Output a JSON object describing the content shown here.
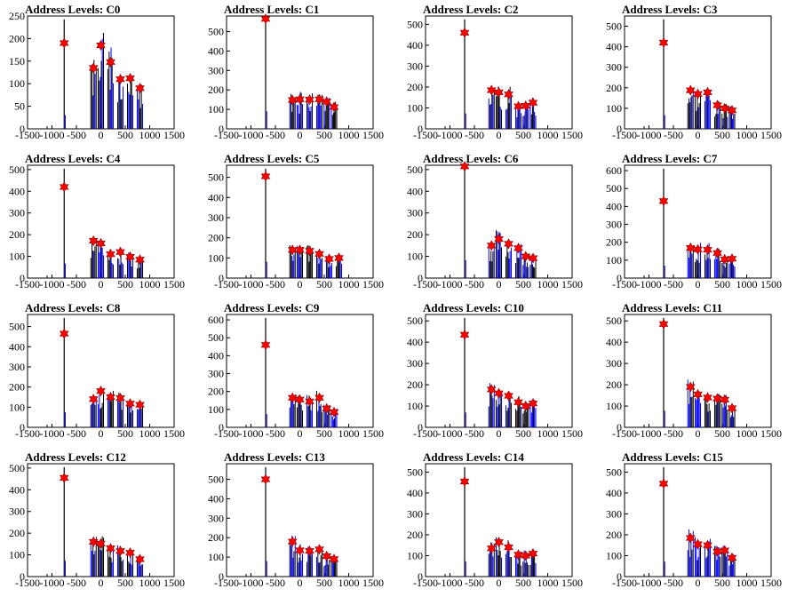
{
  "chart_data": [
    {
      "type": "bar",
      "title": "Address Levels: C0",
      "xlim": [
        -1500,
        1500
      ],
      "ylim": [
        0,
        250
      ],
      "yticks": [
        0,
        50,
        100,
        150,
        200,
        250
      ],
      "xticks": [
        -1500,
        -1000,
        -500,
        0,
        500,
        1000,
        1500
      ],
      "peaks_x": [
        -750,
        -150,
        0,
        200,
        400,
        600,
        800
      ],
      "peaks_y": [
        190,
        135,
        185,
        148,
        110,
        112,
        90
      ]
    },
    {
      "type": "bar",
      "title": "Address Levels: C1",
      "xlim": [
        -1500,
        1500
      ],
      "ylim": [
        0,
        580
      ],
      "yticks": [
        0,
        100,
        200,
        300,
        400,
        500
      ],
      "xticks": [
        -1500,
        -1000,
        -500,
        0,
        500,
        1000,
        1500
      ],
      "peaks_x": [
        -700,
        -150,
        0,
        200,
        400,
        550,
        700
      ],
      "peaks_y": [
        565,
        148,
        152,
        150,
        152,
        140,
        112
      ]
    },
    {
      "type": "bar",
      "title": "Address Levels: C2",
      "xlim": [
        -1500,
        1500
      ],
      "ylim": [
        0,
        540
      ],
      "yticks": [
        0,
        100,
        200,
        300,
        400,
        500
      ],
      "xticks": [
        -1500,
        -1000,
        -500,
        0,
        500,
        1000,
        1500
      ],
      "peaks_x": [
        -700,
        -150,
        0,
        200,
        400,
        550,
        700
      ],
      "peaks_y": [
        460,
        185,
        175,
        165,
        108,
        110,
        125
      ]
    },
    {
      "type": "bar",
      "title": "Address Levels: C3",
      "xlim": [
        -1500,
        1500
      ],
      "ylim": [
        0,
        550
      ],
      "yticks": [
        0,
        100,
        200,
        300,
        400,
        500
      ],
      "xticks": [
        -1500,
        -1000,
        -500,
        0,
        500,
        1000,
        1500
      ],
      "peaks_x": [
        -700,
        -150,
        0,
        200,
        400,
        550,
        700
      ],
      "peaks_y": [
        420,
        188,
        170,
        178,
        115,
        100,
        90
      ]
    },
    {
      "type": "bar",
      "title": "Address Levels: C4",
      "xlim": [
        -1500,
        1500
      ],
      "ylim": [
        0,
        520
      ],
      "yticks": [
        0,
        100,
        200,
        300,
        400,
        500
      ],
      "xticks": [
        -1500,
        -1000,
        -500,
        0,
        500,
        1000,
        1500
      ],
      "peaks_x": [
        -750,
        -150,
        0,
        200,
        400,
        600,
        800
      ],
      "peaks_y": [
        420,
        172,
        160,
        110,
        120,
        98,
        85
      ]
    },
    {
      "type": "bar",
      "title": "Address Levels: C5",
      "xlim": [
        -1500,
        1500
      ],
      "ylim": [
        0,
        560
      ],
      "yticks": [
        0,
        100,
        200,
        300,
        400,
        500
      ],
      "xticks": [
        -1500,
        -1000,
        -500,
        0,
        500,
        1000,
        1500
      ],
      "peaks_x": [
        -700,
        -150,
        0,
        200,
        400,
        600,
        800
      ],
      "peaks_y": [
        505,
        140,
        140,
        135,
        120,
        95,
        100
      ]
    },
    {
      "type": "bar",
      "title": "Address Levels: C6",
      "xlim": [
        -1500,
        1500
      ],
      "ylim": [
        0,
        520
      ],
      "yticks": [
        0,
        100,
        200,
        300,
        400,
        500
      ],
      "xticks": [
        -1500,
        -1000,
        -500,
        0,
        500,
        1000,
        1500
      ],
      "peaks_x": [
        -700,
        -150,
        0,
        200,
        400,
        550,
        700
      ],
      "peaks_y": [
        515,
        150,
        180,
        158,
        138,
        100,
        92
      ]
    },
    {
      "type": "bar",
      "title": "Address Levels: C7",
      "xlim": [
        -1500,
        1500
      ],
      "ylim": [
        0,
        630
      ],
      "yticks": [
        0,
        100,
        200,
        300,
        400,
        500,
        600
      ],
      "xticks": [
        -1500,
        -1000,
        -500,
        0,
        500,
        1000,
        1500
      ],
      "peaks_x": [
        -700,
        -150,
        0,
        200,
        400,
        550,
        700
      ],
      "peaks_y": [
        430,
        168,
        160,
        158,
        140,
        105,
        108
      ]
    },
    {
      "type": "bar",
      "title": "Address Levels: C8",
      "xlim": [
        -1500,
        1500
      ],
      "ylim": [
        0,
        560
      ],
      "yticks": [
        0,
        100,
        200,
        300,
        400,
        500
      ],
      "xticks": [
        -1500,
        -1000,
        -500,
        0,
        500,
        1000,
        1500
      ],
      "peaks_x": [
        -750,
        -150,
        0,
        200,
        400,
        600,
        800
      ],
      "peaks_y": [
        465,
        140,
        180,
        150,
        145,
        118,
        112
      ]
    },
    {
      "type": "bar",
      "title": "Address Levels: C9",
      "xlim": [
        -1500,
        1500
      ],
      "ylim": [
        0,
        630
      ],
      "yticks": [
        0,
        100,
        200,
        300,
        400,
        500,
        600
      ],
      "xticks": [
        -1500,
        -1000,
        -500,
        0,
        500,
        1000,
        1500
      ],
      "peaks_x": [
        -700,
        -150,
        0,
        200,
        400,
        550,
        700
      ],
      "peaks_y": [
        460,
        165,
        155,
        145,
        165,
        105,
        85
      ]
    },
    {
      "type": "bar",
      "title": "Address Levels: C10",
      "xlim": [
        -1500,
        1500
      ],
      "ylim": [
        0,
        530
      ],
      "yticks": [
        0,
        100,
        200,
        300,
        400,
        500
      ],
      "xticks": [
        -1500,
        -1000,
        -500,
        0,
        500,
        1000,
        1500
      ],
      "peaks_x": [
        -700,
        -150,
        0,
        200,
        400,
        550,
        700
      ],
      "peaks_y": [
        435,
        178,
        160,
        148,
        118,
        100,
        112
      ]
    },
    {
      "type": "bar",
      "title": "Address Levels: C11",
      "xlim": [
        -1500,
        1500
      ],
      "ylim": [
        0,
        530
      ],
      "yticks": [
        0,
        100,
        200,
        300,
        400,
        500
      ],
      "xticks": [
        -1500,
        -1000,
        -500,
        0,
        500,
        1000,
        1500
      ],
      "peaks_x": [
        -700,
        -150,
        0,
        200,
        400,
        550,
        700
      ],
      "peaks_y": [
        485,
        190,
        155,
        140,
        135,
        130,
        90
      ]
    },
    {
      "type": "bar",
      "title": "Address Levels: C12",
      "xlim": [
        -1500,
        1500
      ],
      "ylim": [
        0,
        520
      ],
      "yticks": [
        0,
        100,
        200,
        300,
        400,
        500
      ],
      "xticks": [
        -1500,
        -1000,
        -500,
        0,
        500,
        1000,
        1500
      ],
      "peaks_x": [
        -750,
        -150,
        0,
        200,
        400,
        600,
        800
      ],
      "peaks_y": [
        455,
        160,
        152,
        130,
        118,
        110,
        80
      ]
    },
    {
      "type": "bar",
      "title": "Address Levels: C13",
      "xlim": [
        -1500,
        1500
      ],
      "ylim": [
        0,
        580
      ],
      "yticks": [
        0,
        100,
        200,
        300,
        400,
        500
      ],
      "xticks": [
        -1500,
        -1000,
        -500,
        0,
        500,
        1000,
        1500
      ],
      "peaks_x": [
        -700,
        -150,
        0,
        200,
        400,
        550,
        700
      ],
      "peaks_y": [
        500,
        180,
        135,
        132,
        140,
        105,
        90
      ]
    },
    {
      "type": "bar",
      "title": "Address Levels: C14",
      "xlim": [
        -1500,
        1500
      ],
      "ylim": [
        0,
        540
      ],
      "yticks": [
        0,
        100,
        200,
        300,
        400,
        500
      ],
      "xticks": [
        -1500,
        -1000,
        -500,
        0,
        500,
        1000,
        1500
      ],
      "peaks_x": [
        -700,
        -150,
        0,
        200,
        400,
        550,
        700
      ],
      "peaks_y": [
        455,
        135,
        165,
        140,
        105,
        100,
        110
      ]
    },
    {
      "type": "bar",
      "title": "Address Levels: C15",
      "xlim": [
        -1500,
        1500
      ],
      "ylim": [
        0,
        540
      ],
      "yticks": [
        0,
        100,
        200,
        300,
        400,
        500
      ],
      "xticks": [
        -1500,
        -1000,
        -500,
        0,
        500,
        1000,
        1500
      ],
      "peaks_x": [
        -700,
        -150,
        0,
        200,
        400,
        550,
        700
      ],
      "peaks_y": [
        445,
        185,
        155,
        150,
        120,
        125,
        90
      ]
    }
  ],
  "colors": {
    "bar_dark": "#000000",
    "bar_blue": "#0000ff",
    "marker": "#ff0000",
    "marker_edge": "#8b0000",
    "axis": "#000000"
  }
}
